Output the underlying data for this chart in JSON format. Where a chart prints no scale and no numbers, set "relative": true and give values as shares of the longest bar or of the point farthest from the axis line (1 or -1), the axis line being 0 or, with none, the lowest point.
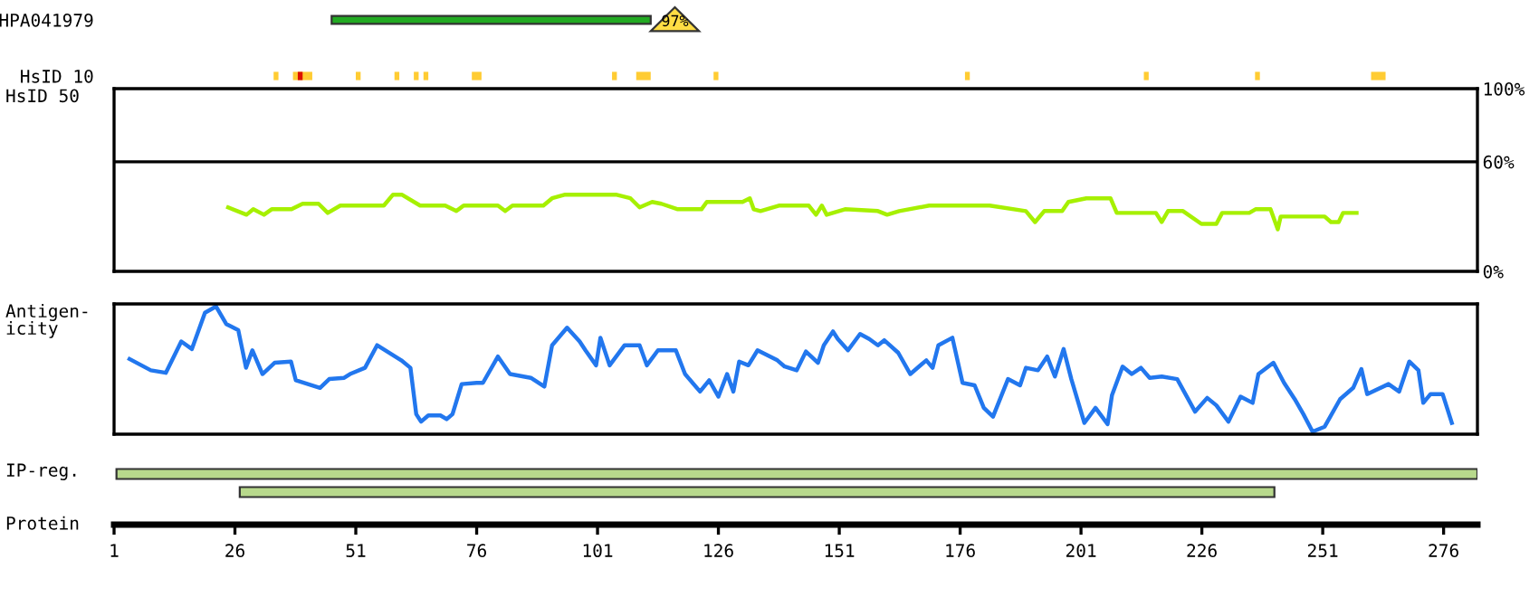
{
  "chart_data": [
    {
      "type": "bar",
      "orientation": "horizontal",
      "categories": [
        "HPA041979"
      ],
      "base": [
        46
      ],
      "values": [
        66
      ],
      "color": "#22aa22",
      "xlim": [
        1,
        283
      ],
      "tick_labels": "y",
      "annotations": [
        "97%"
      ]
    },
    {
      "type": "bar",
      "orientation": "horizontal",
      "categories": [
        "HsID 10"
      ],
      "xlim": [
        1,
        283
      ],
      "tick_labels": "y",
      "series": [
        {
          "color": "#ffcc33",
          "base": [
            34
          ],
          "values": [
            1
          ]
        },
        {
          "color": "#ffcc33",
          "base": [
            38
          ],
          "values": [
            4
          ]
        },
        {
          "color": "#dd1100",
          "base": [
            39
          ],
          "values": [
            1
          ]
        },
        {
          "color": "#ffcc33",
          "base": [
            51
          ],
          "values": [
            1
          ]
        },
        {
          "color": "#ffcc33",
          "base": [
            59
          ],
          "values": [
            1
          ]
        },
        {
          "color": "#ffcc33",
          "base": [
            63
          ],
          "values": [
            1
          ]
        },
        {
          "color": "#ffcc33",
          "base": [
            65
          ],
          "values": [
            1
          ]
        },
        {
          "color": "#ffcc33",
          "base": [
            75
          ],
          "values": [
            2
          ]
        },
        {
          "color": "#ffcc33",
          "base": [
            104
          ],
          "values": [
            1
          ]
        },
        {
          "color": "#ffcc33",
          "base": [
            109
          ],
          "values": [
            3
          ]
        },
        {
          "color": "#ffcc33",
          "base": [
            125
          ],
          "values": [
            1
          ]
        },
        {
          "color": "#ffcc33",
          "base": [
            177
          ],
          "values": [
            1
          ]
        },
        {
          "color": "#ffcc33",
          "base": [
            214
          ],
          "values": [
            1
          ]
        },
        {
          "color": "#ffcc33",
          "base": [
            237
          ],
          "values": [
            1
          ]
        },
        {
          "color": "#ffcc33",
          "base": [
            261
          ],
          "values": [
            3
          ]
        }
      ]
    },
    {
      "type": "line",
      "ylabel": "HsID 50",
      "xlim": [
        1,
        283
      ],
      "ylim": [
        0,
        100
      ],
      "yticks": [
        {
          "value": 0,
          "label": "0%"
        },
        {
          "value": 60,
          "label": "60%"
        },
        {
          "value": 100,
          "label": "100%"
        }
      ],
      "tick_labels": "y",
      "ref_lines": [
        {
          "axis": "y",
          "value": 60,
          "color": "#000000"
        }
      ],
      "series": [
        {
          "color": "#a6f000",
          "x": [
            24.6,
            28.4,
            29.8,
            32,
            33.6,
            37.7,
            40,
            43.3,
            45.2,
            47.8,
            56.8,
            58.7,
            60.5,
            64.3,
            69.5,
            71.8,
            73.3,
            80.4,
            81.9,
            83.4,
            89.8,
            91.6,
            94.3,
            104.8,
            107.8,
            109.7,
            112.3,
            114.2,
            117.6,
            122.5,
            123.6,
            131,
            132.5,
            133.3,
            134.7,
            138.5,
            144.7,
            146.2,
            147.4,
            148.4,
            152.2,
            159,
            160.9,
            163.4,
            169.6,
            182.1,
            189.6,
            191.5,
            193.4,
            197.1,
            198.4,
            202.1,
            207.1,
            208.4,
            216.5,
            217.7,
            219,
            222.1,
            225.9,
            229,
            230.2,
            235.8,
            237.1,
            240.2,
            241.7,
            242.3,
            251.4,
            252.7,
            254.3,
            255.2,
            258
          ],
          "values": [
            35,
            31,
            34,
            31,
            34,
            34,
            37,
            37,
            32,
            36,
            36,
            42,
            42,
            36,
            36,
            33,
            36,
            36,
            33,
            36,
            36,
            40,
            42,
            42,
            40,
            35,
            38,
            37,
            34,
            34,
            38,
            38,
            40,
            34,
            33,
            36,
            36,
            31,
            36,
            31,
            34,
            33,
            31,
            33,
            36,
            36,
            33,
            27,
            33,
            33,
            38,
            40,
            40,
            32,
            32,
            27,
            33,
            33,
            26,
            26,
            32,
            32,
            34,
            34,
            23,
            30,
            30,
            27,
            27,
            32,
            32
          ]
        }
      ]
    },
    {
      "type": "line",
      "ylabel": "Antigen-\nicity",
      "relative": true,
      "xlim": [
        1,
        283
      ],
      "tick_labels": false,
      "series": [
        {
          "color": "#2277ee",
          "x": [
            4.2,
            8.6,
            11.7,
            14.9,
            17.1,
            19.8,
            22.1,
            24.2,
            26.7,
            28.3,
            29.6,
            31.7,
            34.2,
            37.6,
            38.6,
            43.6,
            45.5,
            48.6,
            49.8,
            52.9,
            55.4,
            60.4,
            62.3,
            63.5,
            64.5,
            66,
            68.5,
            69.8,
            71,
            72.9,
            76,
            77.3,
            80.4,
            82.9,
            87.2,
            90,
            91.6,
            94.7,
            97.3,
            98.5,
            100.7,
            101.6,
            103.5,
            106.6,
            109.7,
            111.2,
            113.5,
            117.2,
            119.1,
            122.2,
            124.1,
            126,
            127.8,
            129.1,
            130.3,
            132.2,
            134.1,
            138.2,
            139.7,
            142.2,
            144.1,
            146.6,
            147.8,
            149.7,
            150.7,
            152.8,
            155.3,
            157.2,
            159,
            160.3,
            163.2,
            165.7,
            169,
            170.3,
            171.5,
            174.4,
            176.5,
            179,
            180.9,
            182.8,
            185.9,
            188.4,
            189.6,
            192.1,
            194,
            195.6,
            197.4,
            199,
            201.7,
            204,
            206.5,
            207.4,
            209.6,
            211.5,
            213.4,
            215.2,
            217.7,
            220.9,
            224.6,
            227.1,
            229,
            231.5,
            234,
            236.5,
            237.7,
            240.8,
            243,
            245.2,
            247,
            248.9,
            251.4,
            254.6,
            257.3,
            259,
            260.2,
            264.6,
            266.8,
            268.9,
            270.8,
            271.8,
            273.3,
            275.8,
            277.7
          ],
          "values": [
            0.58,
            0.49,
            0.47,
            0.72,
            0.66,
            0.95,
            1.0,
            0.86,
            0.81,
            0.51,
            0.65,
            0.46,
            0.55,
            0.56,
            0.41,
            0.35,
            0.42,
            0.43,
            0.46,
            0.51,
            0.69,
            0.57,
            0.51,
            0.14,
            0.08,
            0.13,
            0.13,
            0.1,
            0.14,
            0.38,
            0.39,
            0.39,
            0.6,
            0.46,
            0.43,
            0.36,
            0.69,
            0.83,
            0.72,
            0.65,
            0.53,
            0.75,
            0.53,
            0.69,
            0.69,
            0.53,
            0.65,
            0.65,
            0.46,
            0.32,
            0.41,
            0.28,
            0.46,
            0.32,
            0.56,
            0.53,
            0.65,
            0.57,
            0.52,
            0.49,
            0.64,
            0.55,
            0.69,
            0.8,
            0.74,
            0.65,
            0.78,
            0.74,
            0.69,
            0.73,
            0.63,
            0.46,
            0.57,
            0.51,
            0.69,
            0.75,
            0.39,
            0.37,
            0.19,
            0.12,
            0.42,
            0.37,
            0.51,
            0.49,
            0.6,
            0.44,
            0.66,
            0.42,
            0.07,
            0.19,
            0.06,
            0.29,
            0.52,
            0.46,
            0.51,
            0.43,
            0.44,
            0.42,
            0.16,
            0.27,
            0.21,
            0.08,
            0.28,
            0.23,
            0.46,
            0.55,
            0.39,
            0.26,
            0.14,
            0.0,
            0.04,
            0.26,
            0.35,
            0.5,
            0.3,
            0.38,
            0.32,
            0.56,
            0.49,
            0.23,
            0.3,
            0.3,
            0.07
          ]
        }
      ]
    },
    {
      "type": "bar",
      "orientation": "horizontal",
      "ylabel": "IP-reg.",
      "categories": [
        null,
        null
      ],
      "base": [
        1.5,
        27
      ],
      "values": [
        281.5,
        214
      ],
      "color": "#b8d98c",
      "xlabel": "Protein",
      "xlim": [
        1,
        283
      ],
      "xticks": [
        1,
        26,
        51,
        76,
        101,
        126,
        151,
        176,
        201,
        226,
        251,
        276
      ]
    }
  ]
}
